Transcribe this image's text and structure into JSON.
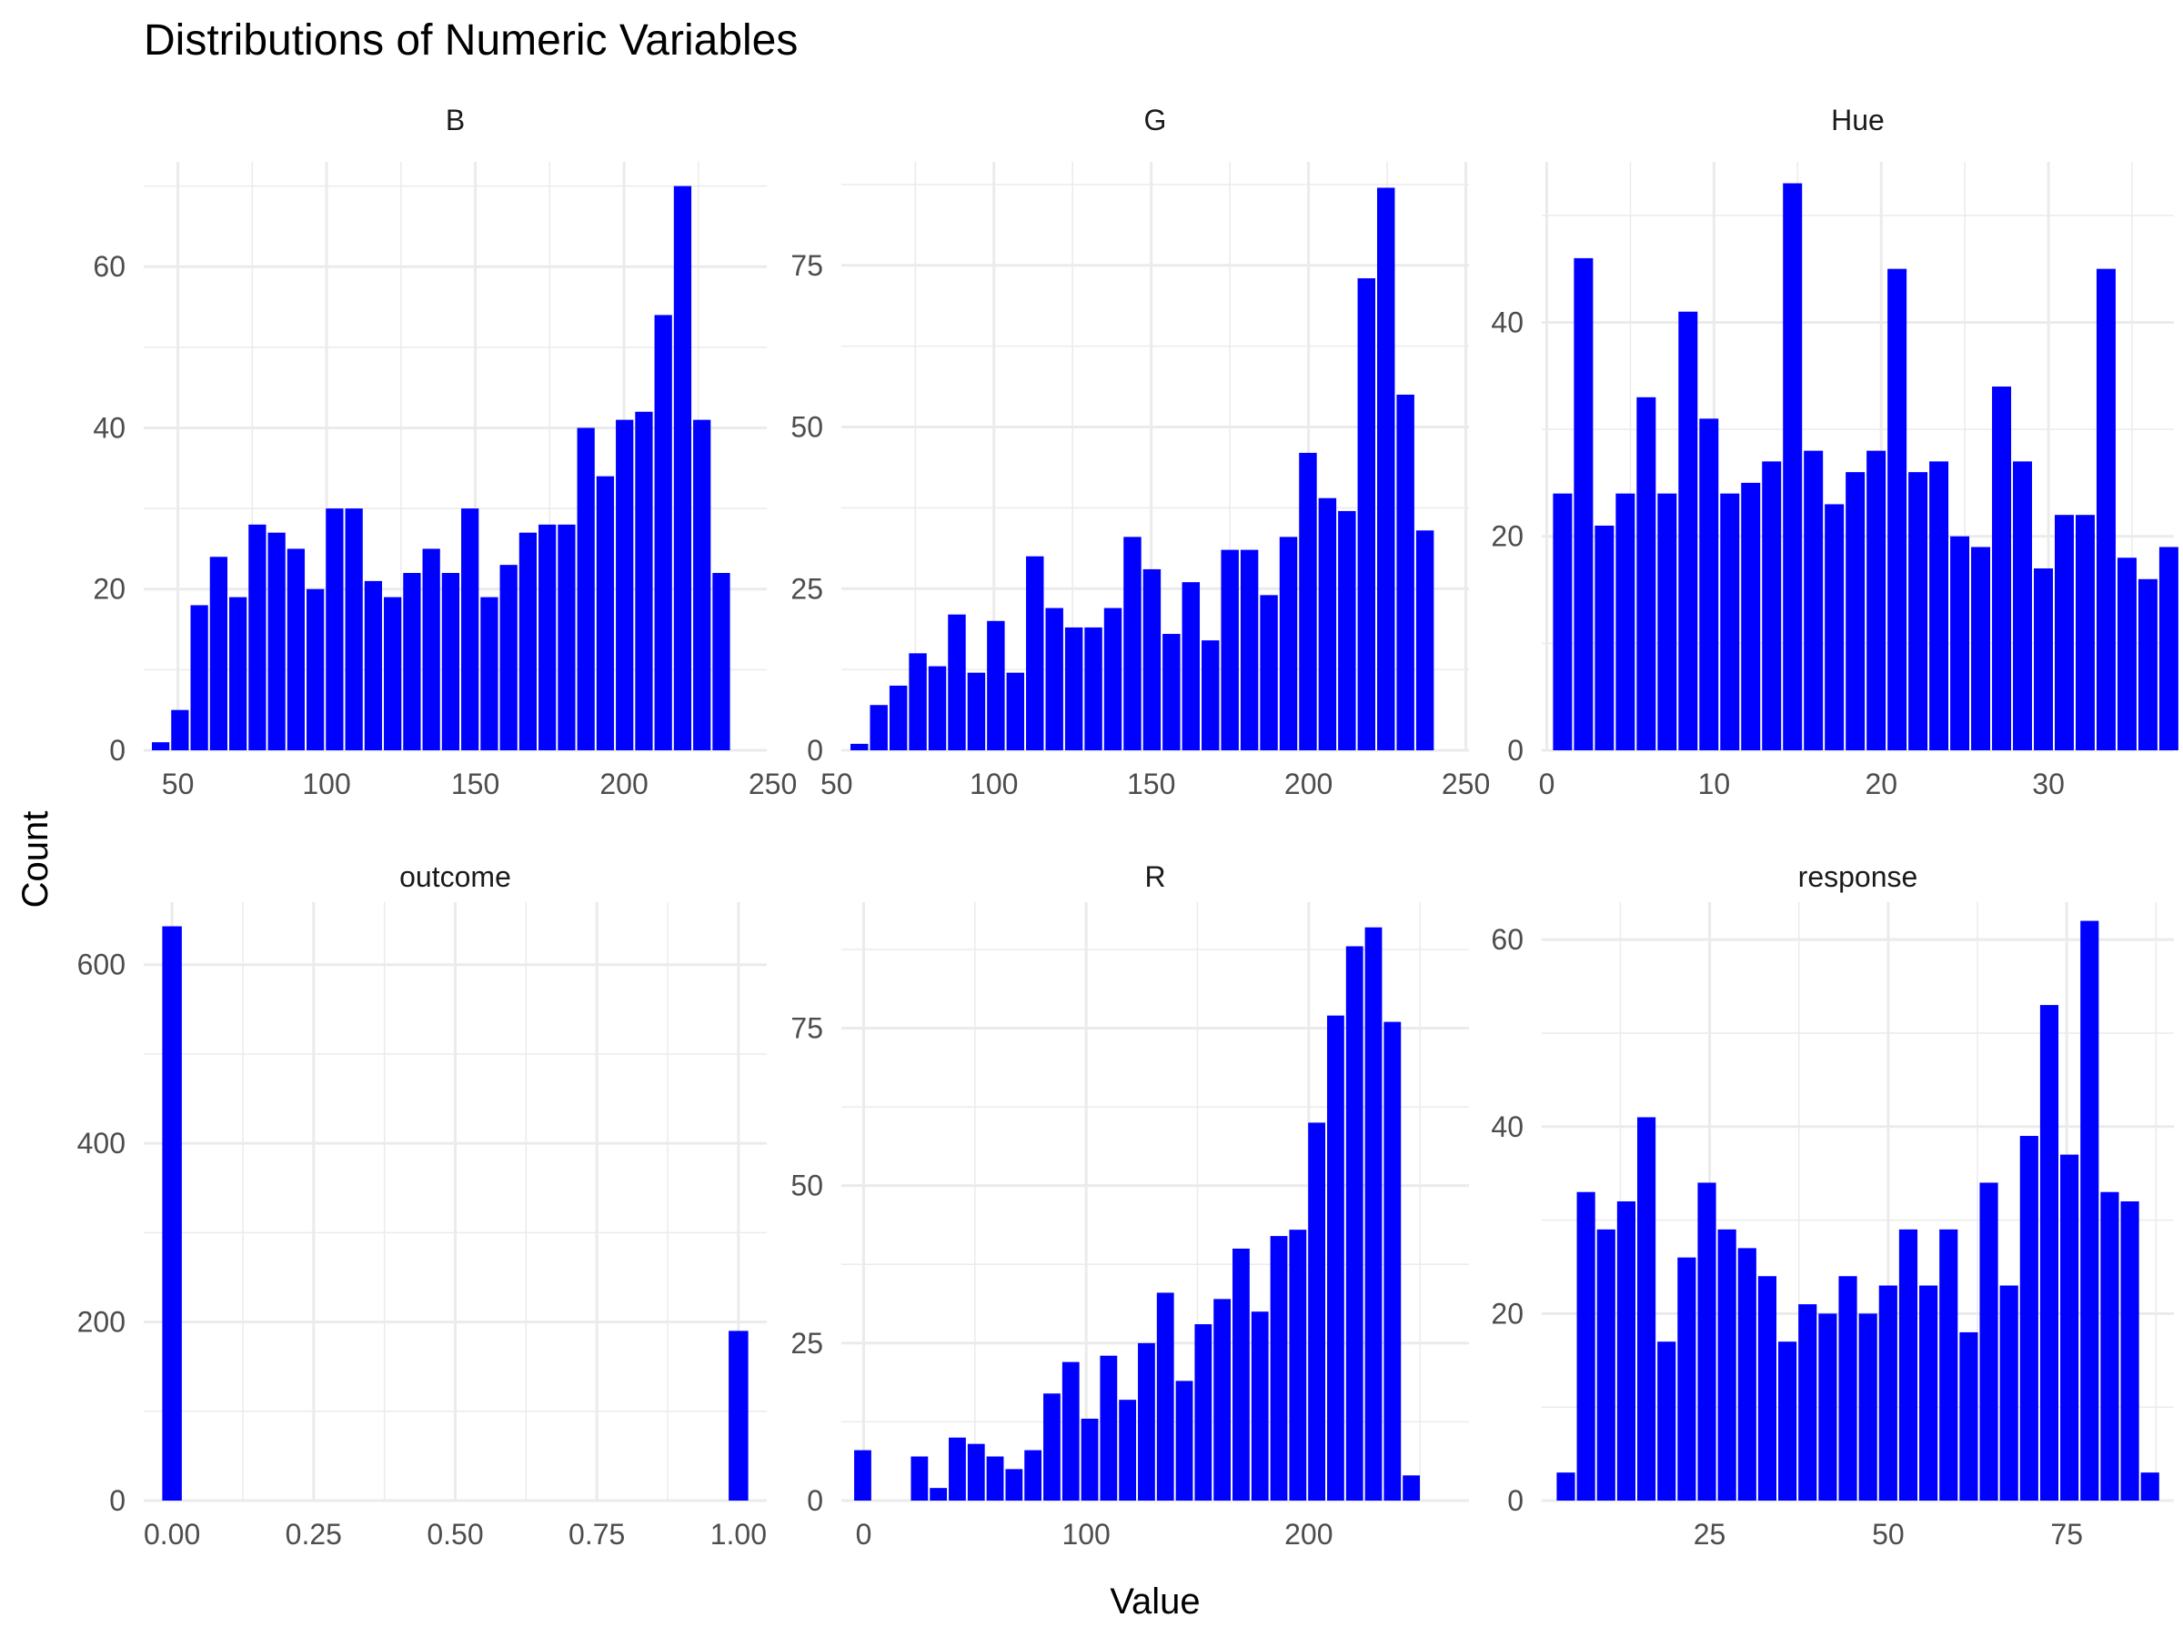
{
  "chart_data": {
    "type": "bar",
    "title": "Distributions of Numeric Variables",
    "xlabel": "Value",
    "ylabel": "Count",
    "colors": {
      "bar": "#0000ff",
      "grid": "#ebebeb"
    },
    "panels": [
      {
        "name": "B",
        "xlim": [
          38.5,
          248
        ],
        "ylim": [
          0,
          73
        ],
        "xticks": [
          50,
          100,
          150,
          200,
          250
        ],
        "yticks": [
          0,
          20,
          40,
          60
        ],
        "bin_start": 44.5,
        "bin_width": 6.5,
        "values": [
          1,
          5,
          18,
          24,
          19,
          28,
          27,
          25,
          20,
          30,
          30,
          21,
          19,
          22,
          25,
          22,
          30,
          19,
          23,
          27,
          28,
          28,
          40,
          34,
          41,
          42,
          54,
          70,
          41,
          22
        ]
      },
      {
        "name": "G",
        "xlim": [
          51.5,
          251
        ],
        "ylim": [
          0,
          91
        ],
        "xticks": [
          50,
          100,
          150,
          200,
          250
        ],
        "yticks": [
          0,
          25,
          50,
          75
        ],
        "bin_start": 57.5,
        "bin_width": 6.2,
        "values": [
          1,
          7,
          10,
          15,
          13,
          21,
          12,
          20,
          12,
          30,
          22,
          19,
          19,
          22,
          33,
          28,
          18,
          26,
          17,
          31,
          31,
          24,
          33,
          46,
          39,
          37,
          73,
          87,
          55,
          34
        ]
      },
      {
        "name": "Hue",
        "xlim": [
          -0.3,
          37.5
        ],
        "ylim": [
          0,
          55
        ],
        "xticks": [
          0,
          10,
          20,
          30
        ],
        "yticks": [
          0,
          20,
          40
        ],
        "bin_start": 1.0,
        "bin_width": 1.25,
        "values": [
          24,
          46,
          21,
          24,
          33,
          24,
          41,
          31,
          24,
          25,
          27,
          53,
          28,
          23,
          26,
          28,
          45,
          26,
          27,
          20,
          19,
          34,
          27,
          17,
          22,
          22,
          45,
          18,
          16,
          19
        ]
      },
      {
        "name": "outcome",
        "xlim": [
          -0.05,
          1.05
        ],
        "ylim": [
          0,
          670
        ],
        "xticks": [
          0.0,
          0.25,
          0.5,
          0.75,
          1.0
        ],
        "xtick_labels": [
          "0.00",
          "0.25",
          "0.50",
          "0.75",
          "1.00"
        ],
        "yticks": [
          0,
          200,
          400,
          600
        ],
        "bins": [
          {
            "x": 0.0,
            "count": 643
          },
          {
            "x": 1.0,
            "count": 190
          }
        ],
        "bin_width": 0.0345
      },
      {
        "name": "R",
        "xlim": [
          -10,
          272
        ],
        "ylim": [
          0,
          95
        ],
        "xticks": [
          0,
          100,
          200
        ],
        "yticks": [
          0,
          25,
          50,
          75
        ],
        "bin_start": 0,
        "bin_width": 8.5,
        "values": [
          8,
          0,
          0,
          7,
          2,
          10,
          9,
          7,
          5,
          8,
          17,
          22,
          13,
          23,
          16,
          25,
          33,
          19,
          28,
          32,
          40,
          30,
          42,
          43,
          60,
          77,
          88,
          91,
          76,
          4
        ]
      },
      {
        "name": "response",
        "xlim": [
          1.5,
          90
        ],
        "ylim": [
          0,
          64
        ],
        "xticks": [
          25,
          50,
          75
        ],
        "yticks": [
          0,
          20,
          40,
          60
        ],
        "bin_start": 5.0,
        "bin_width": 2.82,
        "values": [
          3,
          33,
          29,
          32,
          41,
          17,
          26,
          34,
          29,
          27,
          24,
          17,
          21,
          20,
          24,
          20,
          23,
          29,
          23,
          29,
          18,
          34,
          23,
          39,
          53,
          37,
          62,
          33,
          32,
          3
        ]
      }
    ]
  }
}
